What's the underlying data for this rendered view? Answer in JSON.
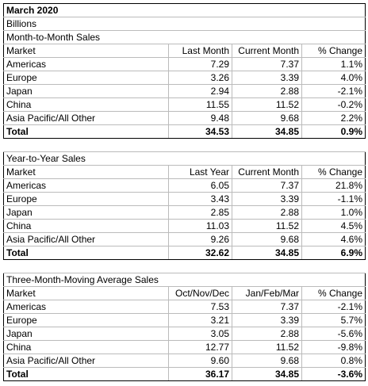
{
  "header": {
    "title": "March 2020",
    "unit": "Billions"
  },
  "sections": [
    {
      "title": "Month-to-Month Sales",
      "columns": [
        "Market",
        "Last Month",
        "Current Month",
        "% Change"
      ],
      "rows": [
        [
          "Americas",
          "7.29",
          "7.37",
          "1.1%"
        ],
        [
          "Europe",
          "3.26",
          "3.39",
          "4.0%"
        ],
        [
          "Japan",
          "2.94",
          "2.88",
          "-2.1%"
        ],
        [
          "China",
          "11.55",
          "11.52",
          "-0.2%"
        ],
        [
          "Asia Pacific/All Other",
          "9.48",
          "9.68",
          "2.2%"
        ]
      ],
      "total": [
        "Total",
        "34.53",
        "34.85",
        "0.9%"
      ]
    },
    {
      "title": "Year-to-Year Sales",
      "columns": [
        "Market",
        "Last Year",
        "Current Month",
        "% Change"
      ],
      "rows": [
        [
          "Americas",
          "6.05",
          "7.37",
          "21.8%"
        ],
        [
          "Europe",
          "3.43",
          "3.39",
          "-1.1%"
        ],
        [
          "Japan",
          "2.85",
          "2.88",
          "1.0%"
        ],
        [
          "China",
          "11.03",
          "11.52",
          "4.5%"
        ],
        [
          "Asia Pacific/All Other",
          "9.26",
          "9.68",
          "4.6%"
        ]
      ],
      "total": [
        "Total",
        "32.62",
        "34.85",
        "6.9%"
      ]
    },
    {
      "title": "Three-Month-Moving Average Sales",
      "columns": [
        "Market",
        "Oct/Nov/Dec",
        "Jan/Feb/Mar",
        "% Change"
      ],
      "rows": [
        [
          "Americas",
          "7.53",
          "7.37",
          "-2.1%"
        ],
        [
          "Europe",
          "3.21",
          "3.39",
          "5.7%"
        ],
        [
          "Japan",
          "3.05",
          "2.88",
          "-5.6%"
        ],
        [
          "China",
          "12.77",
          "11.52",
          "-9.8%"
        ],
        [
          "Asia Pacific/All Other",
          "9.60",
          "9.68",
          "0.8%"
        ]
      ],
      "total": [
        "Total",
        "36.17",
        "34.85",
        "-3.6%"
      ]
    }
  ]
}
